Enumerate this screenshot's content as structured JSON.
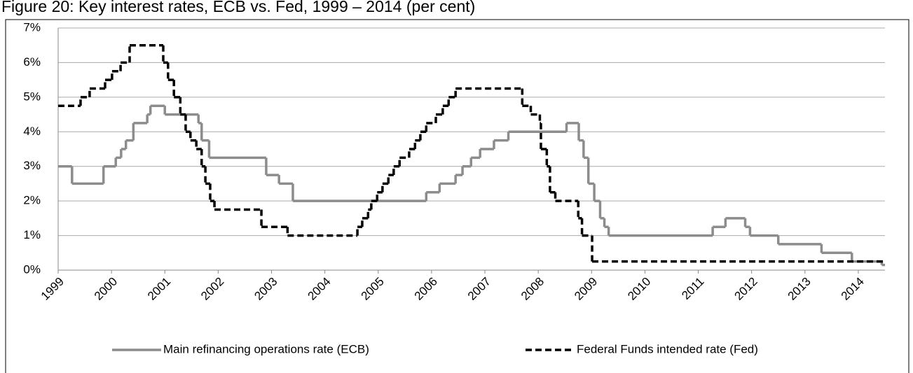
{
  "chart_data": {
    "type": "line",
    "step": true,
    "title": "Figure 20: Key interest rates, ECB vs. Fed, 1999 – 2014 (per cent)",
    "xlim": [
      1999,
      2014.5
    ],
    "xticks": [
      1999,
      2000,
      2001,
      2002,
      2003,
      2004,
      2005,
      2006,
      2007,
      2008,
      2009,
      2010,
      2011,
      2012,
      2013,
      2014
    ],
    "ylim": [
      0,
      7
    ],
    "yticks": [
      {
        "value": 0,
        "label": "0%"
      },
      {
        "value": 1,
        "label": "1%"
      },
      {
        "value": 2,
        "label": "2%"
      },
      {
        "value": 3,
        "label": "3%"
      },
      {
        "value": 4,
        "label": "4%"
      },
      {
        "value": 5,
        "label": "5%"
      },
      {
        "value": 6,
        "label": "6%"
      },
      {
        "value": 7,
        "label": "7%"
      }
    ],
    "grid": true,
    "legend": "bottom",
    "series": [
      {
        "name": "Main refinancing operations rate (ECB)",
        "color": "#8c8c8c",
        "dash": false,
        "x": [
          1999.0,
          1999.26,
          1999.85,
          2000.08,
          2000.18,
          2000.27,
          2000.41,
          2000.67,
          2000.73,
          2001.0,
          2001.63,
          2001.69,
          2001.83,
          2002.9,
          2003.14,
          2003.4,
          2005.9,
          2006.15,
          2006.45,
          2006.58,
          2006.74,
          2006.91,
          2007.17,
          2007.44,
          2008.53,
          2008.76,
          2008.85,
          2008.94,
          2009.05,
          2009.16,
          2009.24,
          2009.32,
          2011.27,
          2011.51,
          2011.88,
          2011.97,
          2012.5,
          2013.31,
          2013.88,
          2014.44
        ],
        "values": [
          3.0,
          2.5,
          3.0,
          3.25,
          3.5,
          3.75,
          4.25,
          4.5,
          4.75,
          4.5,
          4.25,
          3.75,
          3.25,
          2.75,
          2.5,
          2.0,
          2.25,
          2.5,
          2.75,
          3.0,
          3.25,
          3.5,
          3.75,
          4.0,
          4.25,
          3.75,
          3.25,
          2.5,
          2.0,
          1.5,
          1.25,
          1.0,
          1.25,
          1.5,
          1.25,
          1.0,
          0.75,
          0.5,
          0.25,
          0.15
        ]
      },
      {
        "name": "Federal Funds intended rate (Fed)",
        "color": "#000000",
        "dash": true,
        "x": [
          1999.0,
          1999.42,
          1999.59,
          1999.88,
          2000.01,
          2000.17,
          2000.34,
          2000.97,
          2001.06,
          2001.17,
          2001.29,
          2001.39,
          2001.48,
          2001.59,
          2001.69,
          2001.76,
          2001.85,
          2001.93,
          2002.81,
          2003.3,
          2004.61,
          2004.7,
          2004.81,
          2004.87,
          2004.98,
          2005.08,
          2005.19,
          2005.29,
          2005.4,
          2005.58,
          2005.69,
          2005.79,
          2005.9,
          2006.08,
          2006.21,
          2006.32,
          2006.45,
          2007.7,
          2007.86,
          2008.03,
          2008.05,
          2008.16,
          2008.22,
          2008.32,
          2008.75,
          2008.82,
          2009.01
        ],
        "values": [
          4.75,
          5.0,
          5.25,
          5.5,
          5.75,
          6.0,
          6.5,
          6.0,
          5.5,
          5.0,
          4.5,
          4.0,
          3.75,
          3.5,
          3.0,
          2.5,
          2.0,
          1.75,
          1.25,
          1.0,
          1.25,
          1.5,
          1.75,
          2.0,
          2.25,
          2.5,
          2.75,
          3.0,
          3.25,
          3.5,
          3.75,
          4.0,
          4.25,
          4.5,
          4.75,
          5.0,
          5.25,
          4.75,
          4.5,
          4.25,
          3.5,
          3.0,
          2.25,
          2.0,
          1.5,
          1.0,
          0.25
        ]
      }
    ]
  }
}
